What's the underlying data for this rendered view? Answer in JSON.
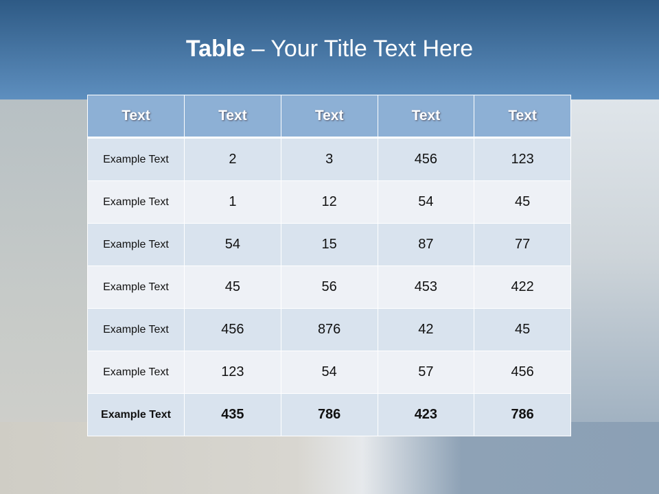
{
  "title": {
    "bold": "Table",
    "rest": " – Your Title Text Here"
  },
  "table": {
    "headers": [
      "Text",
      "Text",
      "Text",
      "Text",
      "Text"
    ],
    "rows": [
      [
        "Example Text",
        "2",
        "3",
        "456",
        "123"
      ],
      [
        "Example Text",
        "1",
        "12",
        "54",
        "45"
      ],
      [
        "Example Text",
        "54",
        "15",
        "87",
        "77"
      ],
      [
        "Example Text",
        "45",
        "56",
        "453",
        "422"
      ],
      [
        "Example Text",
        "456",
        "876",
        "42",
        "45"
      ],
      [
        "Example Text",
        "123",
        "54",
        "57",
        "456"
      ],
      [
        "Example Text",
        "435",
        "786",
        "423",
        "786"
      ]
    ]
  },
  "colors": {
    "header_band": "#2e5a85",
    "table_header": "#8db0d5",
    "row_odd": "#d9e3ee",
    "row_even": "#eef1f6"
  }
}
